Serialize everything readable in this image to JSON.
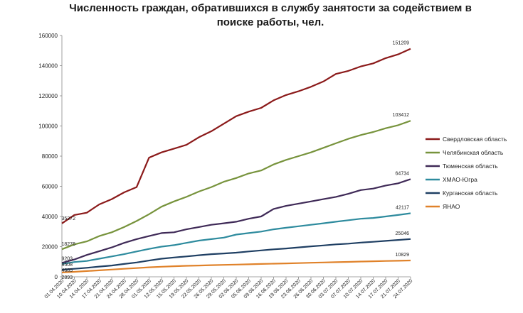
{
  "chart_data": {
    "type": "line",
    "title_line1": "Численность граждан, обратившихся в службу занятости за содействием в",
    "title_line2": "поиске работы, чел.",
    "ylim": [
      0,
      160000
    ],
    "y_ticks": [
      "0",
      "20000",
      "40000",
      "60000",
      "80000",
      "100000",
      "120000",
      "140000",
      "160000"
    ],
    "categories": [
      "01.04.2020",
      "10.04.2020",
      "14.04.2020",
      "17.04.2020",
      "21.04.2020",
      "24.04.2020",
      "28.04.2020",
      "01.05.2020",
      "12.05.2020",
      "15.05.2020",
      "19.05.2020",
      "22.05.2020",
      "26.05.2020",
      "29.05.2020",
      "02.06.2020",
      "05.06.2020",
      "09.06.2020",
      "16.06.2020",
      "19.06.2020",
      "23.06.2020",
      "26.06.2020",
      "30.06.2020",
      "03.07.2020",
      "07.07.2020",
      "10.07.2020",
      "14.07.2020",
      "17.07.2020",
      "21.07.2020",
      "24.07.2020"
    ],
    "legend_position": "right",
    "grid": false,
    "series": [
      {
        "name": "Свердловская область",
        "color": "#8B1A1A",
        "values": [
          35372,
          41000,
          42500,
          48000,
          51500,
          56000,
          59500,
          79000,
          82500,
          85000,
          87500,
          92500,
          96500,
          101500,
          106500,
          109500,
          112000,
          117000,
          120500,
          123000,
          126000,
          129500,
          134500,
          136500,
          139500,
          141500,
          145000,
          147500,
          151209
        ],
        "labels": {
          "0": "35372",
          "28": "151209"
        }
      },
      {
        "name": "Челябинская область",
        "color": "#77933C",
        "values": [
          18276,
          21500,
          23500,
          27000,
          29500,
          33000,
          37000,
          41500,
          46500,
          50000,
          53000,
          56500,
          59500,
          63000,
          65500,
          68500,
          70500,
          74500,
          77500,
          80000,
          82500,
          85500,
          88500,
          91500,
          94000,
          96000,
          98500,
          100500,
          103412
        ],
        "labels": {
          "0": "18276",
          "28": "103412"
        }
      },
      {
        "name": "Тюменская область",
        "color": "#3F2A57",
        "values": [
          9203,
          11500,
          14500,
          17000,
          19500,
          22500,
          25000,
          27000,
          29000,
          29500,
          31500,
          33000,
          34500,
          35500,
          36500,
          38500,
          40000,
          45000,
          47000,
          48500,
          50000,
          51500,
          53000,
          55000,
          57500,
          58500,
          60500,
          62000,
          64734
        ],
        "labels": {
          "0": "9203",
          "28": "64734"
        }
      },
      {
        "name": "ХМАО-Югра",
        "color": "#2E8B9E",
        "values": [
          8508,
          9800,
          10500,
          12000,
          13500,
          15000,
          16800,
          18500,
          20000,
          21000,
          22500,
          24000,
          25000,
          26000,
          28000,
          29000,
          30000,
          31500,
          32500,
          33500,
          34500,
          35500,
          36500,
          37500,
          38500,
          39000,
          40000,
          41000,
          42117
        ],
        "labels": {
          "0": "8508",
          "28": "42117"
        }
      },
      {
        "name": "Курганская область",
        "color": "#1F3F63",
        "values": [
          4685,
          5300,
          6000,
          6800,
          7500,
          8500,
          9500,
          10800,
          12000,
          12800,
          13500,
          14300,
          15000,
          15500,
          16000,
          16800,
          17500,
          18200,
          18800,
          19500,
          20200,
          20800,
          21500,
          22000,
          22700,
          23200,
          23800,
          24400,
          25046
        ],
        "labels": {
          "0": "4685",
          "28": "25046"
        }
      },
      {
        "name": "ЯНАО",
        "color": "#E0822A",
        "values": [
          2893,
          3300,
          3800,
          4300,
          4800,
          5300,
          5800,
          6300,
          6700,
          7000,
          7300,
          7500,
          7700,
          7900,
          8100,
          8300,
          8500,
          8700,
          8900,
          9100,
          9300,
          9500,
          9700,
          9900,
          10100,
          10300,
          10500,
          10650,
          10829
        ],
        "labels": {
          "0": "2893",
          "28": "10829"
        }
      }
    ]
  }
}
